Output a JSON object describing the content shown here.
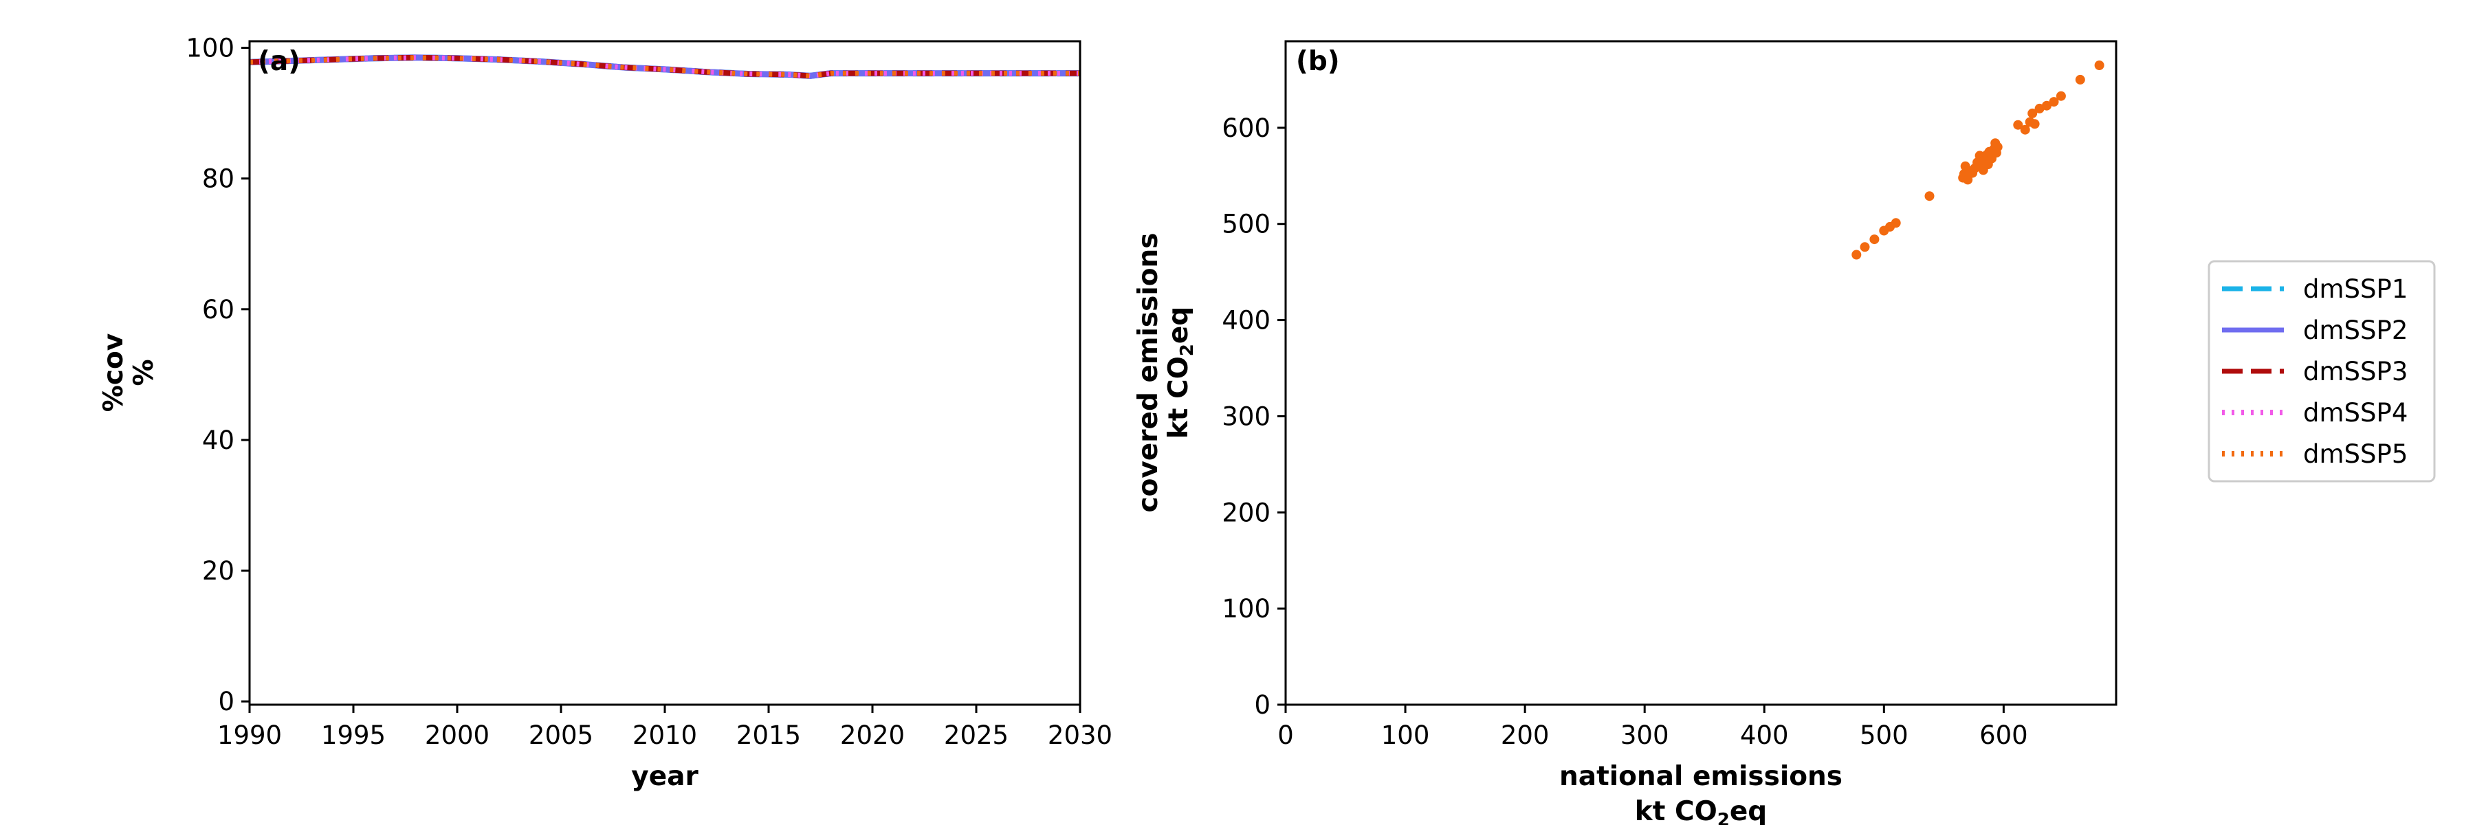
{
  "chart_data": [
    {
      "panel": "(a)",
      "type": "line",
      "xlabel": "year",
      "ylabel_lines": [
        "%cov",
        "%"
      ],
      "xlim": [
        1990,
        2030
      ],
      "ylim": [
        -0.5,
        101
      ],
      "xticks": [
        1990,
        1995,
        2000,
        2005,
        2010,
        2015,
        2020,
        2025,
        2030
      ],
      "yticks": [
        0,
        20,
        40,
        60,
        80,
        100
      ],
      "series": [
        {
          "name": "dmSSP1",
          "color": "#1bb3e8",
          "x": [
            1990,
            1992,
            1994,
            1996,
            1998,
            2000,
            2002,
            2004,
            2006,
            2008,
            2010,
            2012,
            2014,
            2016,
            2017,
            2018,
            2020,
            2022,
            2024,
            2026,
            2028,
            2030
          ],
          "y": [
            97.8,
            98.0,
            98.2,
            98.4,
            98.5,
            98.4,
            98.2,
            97.9,
            97.5,
            97.0,
            96.7,
            96.3,
            96.0,
            95.9,
            95.7,
            96.1,
            96.1,
            96.1,
            96.1,
            96.1,
            96.1,
            96.1
          ]
        },
        {
          "name": "dmSSP2",
          "color": "#6f6cf0",
          "x": [
            1990,
            1992,
            1994,
            1996,
            1998,
            2000,
            2002,
            2004,
            2006,
            2008,
            2010,
            2012,
            2014,
            2016,
            2017,
            2018,
            2020,
            2022,
            2024,
            2026,
            2028,
            2030
          ],
          "y": [
            97.8,
            98.0,
            98.2,
            98.4,
            98.5,
            98.4,
            98.2,
            97.9,
            97.5,
            97.0,
            96.7,
            96.3,
            96.0,
            95.9,
            95.7,
            96.1,
            96.1,
            96.1,
            96.1,
            96.1,
            96.1,
            96.1
          ]
        },
        {
          "name": "dmSSP3",
          "color": "#b00c0c",
          "x": [
            1990,
            1992,
            1994,
            1996,
            1998,
            2000,
            2002,
            2004,
            2006,
            2008,
            2010,
            2012,
            2014,
            2016,
            2017,
            2018,
            2020,
            2022,
            2024,
            2026,
            2028,
            2030
          ],
          "y": [
            97.8,
            98.0,
            98.2,
            98.4,
            98.5,
            98.4,
            98.2,
            97.9,
            97.5,
            97.0,
            96.7,
            96.3,
            96.0,
            95.9,
            95.7,
            96.1,
            96.1,
            96.1,
            96.1,
            96.1,
            96.1,
            96.1
          ]
        },
        {
          "name": "dmSSP4",
          "color": "#f25ae8",
          "x": [
            1990,
            1992,
            1994,
            1996,
            1998,
            2000,
            2002,
            2004,
            2006,
            2008,
            2010,
            2012,
            2014,
            2016,
            2017,
            2018,
            2020,
            2022,
            2024,
            2026,
            2028,
            2030
          ],
          "y": [
            97.8,
            98.0,
            98.2,
            98.4,
            98.5,
            98.4,
            98.2,
            97.9,
            97.5,
            97.0,
            96.7,
            96.3,
            96.0,
            95.9,
            95.7,
            96.1,
            96.1,
            96.1,
            96.1,
            96.1,
            96.1,
            96.1
          ]
        },
        {
          "name": "dmSSP5",
          "color": "#f26a10",
          "x": [
            1990,
            1992,
            1994,
            1996,
            1998,
            2000,
            2002,
            2004,
            2006,
            2008,
            2010,
            2012,
            2014,
            2016,
            2017,
            2018,
            2020,
            2022,
            2024,
            2026,
            2028,
            2030
          ],
          "y": [
            97.8,
            98.0,
            98.2,
            98.4,
            98.5,
            98.4,
            98.2,
            97.9,
            97.5,
            97.0,
            96.7,
            96.3,
            96.0,
            95.9,
            95.7,
            96.1,
            96.1,
            96.1,
            96.1,
            96.1,
            96.1,
            96.1
          ]
        }
      ]
    },
    {
      "panel": "(b)",
      "type": "scatter",
      "xlabel_lines": [
        "national emissions",
        "kt CO2eq"
      ],
      "ylabel_lines": [
        "covered emissions",
        "kt CO2eq"
      ],
      "xlim": [
        0,
        694
      ],
      "ylim": [
        0,
        690
      ],
      "xticks": [
        0,
        100,
        200,
        300,
        400,
        500,
        600
      ],
      "yticks": [
        0,
        100,
        200,
        300,
        400,
        500,
        600
      ],
      "series": [
        {
          "color": "#f26a10",
          "points": [
            [
              477,
              468
            ],
            [
              484,
              476
            ],
            [
              492,
              484
            ],
            [
              500,
              493
            ],
            [
              505,
              497
            ],
            [
              510,
              501
            ],
            [
              538,
              529
            ],
            [
              566,
              548
            ],
            [
              567,
              552
            ],
            [
              568,
              560
            ],
            [
              570,
              546
            ],
            [
              572,
              555
            ],
            [
              574,
              553
            ],
            [
              576,
              558
            ],
            [
              578,
              564
            ],
            [
              580,
              571
            ],
            [
              582,
              559
            ],
            [
              583,
              556
            ],
            [
              584,
              566
            ],
            [
              586,
              572
            ],
            [
              587,
              562
            ],
            [
              588,
              575
            ],
            [
              590,
              568
            ],
            [
              592,
              578
            ],
            [
              593,
              584
            ],
            [
              594,
              574
            ],
            [
              595,
              580
            ],
            [
              612,
              603
            ],
            [
              618,
              598
            ],
            [
              622,
              606
            ],
            [
              624,
              615
            ],
            [
              626,
              604
            ],
            [
              630,
              620
            ],
            [
              636,
              623
            ],
            [
              642,
              627
            ],
            [
              648,
              633
            ],
            [
              664,
              650
            ],
            [
              680,
              665
            ]
          ]
        }
      ]
    }
  ],
  "legend": [
    {
      "name": "dmSSP1",
      "color": "#1bb3e8",
      "style": "dashed"
    },
    {
      "name": "dmSSP2",
      "color": "#6f6cf0",
      "style": "solid"
    },
    {
      "name": "dmSSP3",
      "color": "#b00c0c",
      "style": "dashed"
    },
    {
      "name": "dmSSP4",
      "color": "#f25ae8",
      "style": "dotted"
    },
    {
      "name": "dmSSP5",
      "color": "#f26a10",
      "style": "dotted"
    }
  ]
}
